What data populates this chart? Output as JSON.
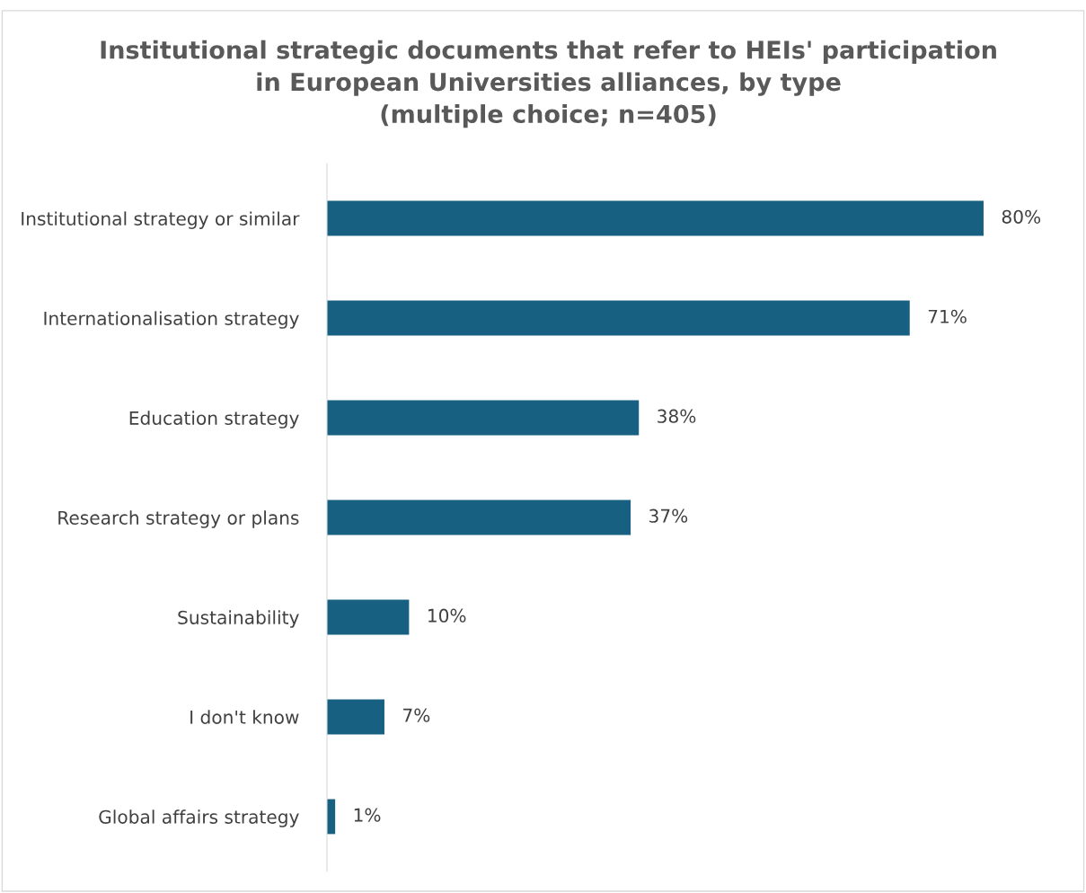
{
  "chart_data": {
    "type": "bar",
    "orientation": "horizontal",
    "title": "Institutional strategic documents that refer to HEIs' participation\nin European Universities alliances, by type\n(multiple choice; n=405)",
    "categories": [
      "Institutional strategy or similar",
      "Internationalisation strategy",
      "Education strategy",
      "Research strategy or plans",
      "Sustainability",
      "I don't know",
      "Global affairs strategy"
    ],
    "values": [
      80,
      71,
      38,
      37,
      10,
      7,
      1
    ],
    "value_labels": [
      "80%",
      "71%",
      "38%",
      "37%",
      "10%",
      "7%",
      "1%"
    ],
    "color": "#176082",
    "grid": false,
    "legend": false,
    "tick_labels": "y"
  }
}
